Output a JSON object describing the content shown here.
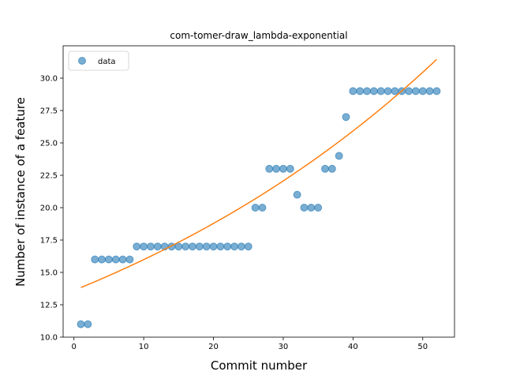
{
  "chart_data": {
    "type": "scatter",
    "title": "com-tomer-draw_lambda-exponential",
    "xlabel": "Commit number",
    "ylabel": "Number of instance of a feature",
    "xlim": [
      -1.55,
      54.55
    ],
    "ylim": [
      10.0,
      32.5
    ],
    "xticks": [
      0,
      10,
      20,
      30,
      40,
      50
    ],
    "yticks": [
      10.0,
      12.5,
      15.0,
      17.5,
      20.0,
      22.5,
      25.0,
      27.5,
      30.0
    ],
    "legend": {
      "position": "upper-left",
      "entries": [
        "data"
      ]
    },
    "series": [
      {
        "name": "data",
        "kind": "scatter",
        "color": "#1f77b4",
        "x": [
          1,
          2,
          3,
          4,
          5,
          6,
          7,
          8,
          9,
          10,
          11,
          12,
          13,
          14,
          15,
          16,
          17,
          18,
          19,
          20,
          21,
          22,
          23,
          24,
          25,
          26,
          27,
          28,
          29,
          30,
          31,
          32,
          33,
          34,
          35,
          36,
          37,
          38,
          39,
          40,
          41,
          42,
          43,
          44,
          45,
          46,
          47,
          48,
          49,
          50,
          51,
          52
        ],
        "y": [
          11,
          11,
          16,
          16,
          16,
          16,
          16,
          16,
          17,
          17,
          17,
          17,
          17,
          17,
          17,
          17,
          17,
          17,
          17,
          17,
          17,
          17,
          17,
          17,
          17,
          20,
          20,
          23,
          23,
          23,
          23,
          21,
          20,
          20,
          20,
          23,
          23,
          24,
          27,
          29,
          29,
          29,
          29,
          29,
          29,
          29,
          29,
          29,
          29,
          29,
          29,
          29
        ]
      },
      {
        "kind": "line",
        "color": "#ff7f0e",
        "x": [
          1,
          52
        ],
        "y": [
          13.83,
          31.45
        ]
      }
    ]
  }
}
